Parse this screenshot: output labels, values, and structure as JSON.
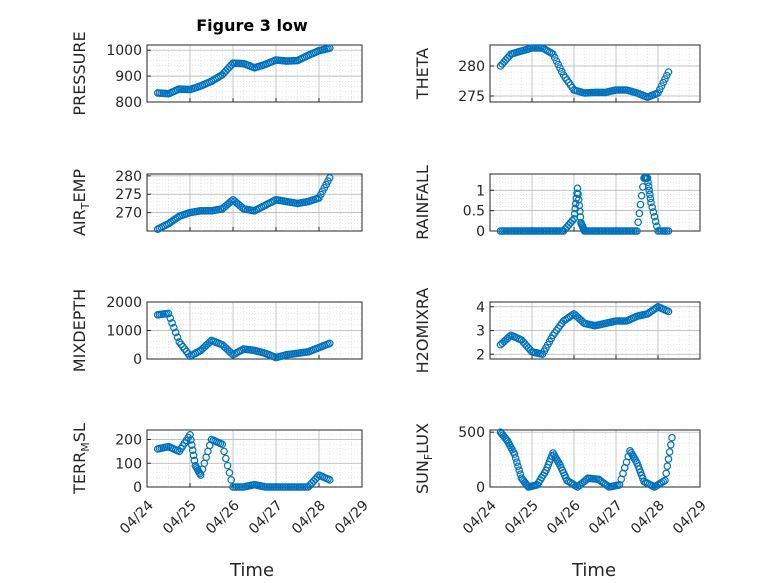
{
  "title": "Figure 3 low",
  "colors": {
    "marker": "#0072BD",
    "axis": "#262626",
    "grid": "#b0b0b0",
    "minor_grid": "#d8d8d8"
  },
  "chart_data": [
    {
      "type": "scatter",
      "ylabel_parts": [
        "PRESSURE"
      ],
      "ylim": [
        800,
        1020
      ],
      "yticks": [
        800,
        900,
        1000
      ],
      "xlim": [
        "04/24",
        "04/29"
      ],
      "grid": true,
      "minor_grid": true,
      "x": [
        "04/24 06:00",
        "04/24 12:00",
        "04/24 18:00",
        "04/25 00:00",
        "04/25 06:00",
        "04/25 12:00",
        "04/25 18:00",
        "04/26 00:00",
        "04/26 06:00",
        "04/26 12:00",
        "04/26 18:00",
        "04/27 00:00",
        "04/27 06:00",
        "04/27 12:00",
        "04/27 18:00",
        "04/28 00:00",
        "04/28 06:00"
      ],
      "y": [
        835,
        832,
        850,
        848,
        862,
        880,
        905,
        950,
        948,
        932,
        945,
        962,
        958,
        960,
        980,
        998,
        1008
      ]
    },
    {
      "type": "scatter",
      "ylabel_parts": [
        "THETA"
      ],
      "ylim": [
        274,
        283.5
      ],
      "yticks": [
        275,
        280
      ],
      "xlim": [
        "04/24",
        "04/29"
      ],
      "grid": true,
      "minor_grid": true,
      "x": [
        "04/24 06:00",
        "04/24 12:00",
        "04/24 18:00",
        "04/25 00:00",
        "04/25 06:00",
        "04/25 12:00",
        "04/25 18:00",
        "04/26 00:00",
        "04/26 06:00",
        "04/26 12:00",
        "04/26 18:00",
        "04/27 00:00",
        "04/27 06:00",
        "04/27 12:00",
        "04/27 18:00",
        "04/28 00:00",
        "04/28 06:00"
      ],
      "y": [
        280,
        282,
        282.5,
        283,
        283,
        282,
        278.5,
        276,
        275.5,
        275.6,
        275.6,
        276,
        276,
        275.5,
        274.8,
        275.5,
        279
      ]
    },
    {
      "type": "scatter",
      "ylabel_parts": [
        "AIR",
        "T",
        "EMP"
      ],
      "ylim": [
        265,
        280.5
      ],
      "yticks": [
        270,
        275,
        280
      ],
      "xlim": [
        "04/24",
        "04/29"
      ],
      "grid": true,
      "minor_grid": true,
      "x": [
        "04/24 06:00",
        "04/24 12:00",
        "04/24 18:00",
        "04/25 00:00",
        "04/25 06:00",
        "04/25 12:00",
        "04/25 18:00",
        "04/26 00:00",
        "04/26 06:00",
        "04/26 12:00",
        "04/26 18:00",
        "04/27 00:00",
        "04/27 06:00",
        "04/27 12:00",
        "04/27 18:00",
        "04/28 00:00",
        "04/28 06:00"
      ],
      "y": [
        265.5,
        267,
        269,
        270,
        270.5,
        270.5,
        271,
        273.5,
        271,
        270.5,
        272,
        273.5,
        273,
        272.5,
        273,
        274,
        279.5
      ]
    },
    {
      "type": "scatter",
      "ylabel_parts": [
        "RAINFALL"
      ],
      "ylim": [
        0,
        1.4
      ],
      "yticks": [
        0,
        0.5,
        1
      ],
      "xlim": [
        "04/24",
        "04/29"
      ],
      "grid": true,
      "minor_grid": true,
      "x": [
        "04/24 06:00",
        "04/24 12:00",
        "04/24 18:00",
        "04/25 00:00",
        "04/25 06:00",
        "04/25 12:00",
        "04/25 18:00",
        "04/26 00:00",
        "04/26 02:00",
        "04/26 04:00",
        "04/26 06:00",
        "04/26 12:00",
        "04/26 18:00",
        "04/27 00:00",
        "04/27 06:00",
        "04/27 12:00",
        "04/27 16:00",
        "04/27 18:00",
        "04/27 20:00",
        "04/28 00:00",
        "04/28 06:00"
      ],
      "y": [
        0,
        0,
        0,
        0,
        0,
        0,
        0,
        0.3,
        1.05,
        0.2,
        0,
        0,
        0,
        0,
        0,
        0,
        1.3,
        1.3,
        0.7,
        0,
        0
      ]
    },
    {
      "type": "scatter",
      "ylabel_parts": [
        "MIXDEPTH"
      ],
      "ylim": [
        0,
        2000
      ],
      "yticks": [
        0,
        1000,
        2000
      ],
      "xlim": [
        "04/24",
        "04/29"
      ],
      "grid": true,
      "minor_grid": true,
      "x": [
        "04/24 06:00",
        "04/24 12:00",
        "04/24 18:00",
        "04/25 00:00",
        "04/25 06:00",
        "04/25 12:00",
        "04/25 18:00",
        "04/26 00:00",
        "04/26 06:00",
        "04/26 12:00",
        "04/26 18:00",
        "04/27 00:00",
        "04/27 06:00",
        "04/27 12:00",
        "04/27 18:00",
        "04/28 00:00",
        "04/28 06:00"
      ],
      "y": [
        1550,
        1600,
        600,
        100,
        300,
        650,
        500,
        150,
        350,
        300,
        200,
        50,
        150,
        200,
        250,
        400,
        550
      ]
    },
    {
      "type": "scatter",
      "ylabel_parts": [
        "H2OMIXRA"
      ],
      "ylim": [
        1.8,
        4.2
      ],
      "yticks": [
        2,
        3,
        4
      ],
      "xlim": [
        "04/24",
        "04/29"
      ],
      "grid": true,
      "minor_grid": true,
      "x": [
        "04/24 06:00",
        "04/24 12:00",
        "04/24 18:00",
        "04/25 00:00",
        "04/25 06:00",
        "04/25 12:00",
        "04/25 18:00",
        "04/26 00:00",
        "04/26 06:00",
        "04/26 12:00",
        "04/26 18:00",
        "04/27 00:00",
        "04/27 06:00",
        "04/27 12:00",
        "04/27 18:00",
        "04/28 00:00",
        "04/28 06:00"
      ],
      "y": [
        2.4,
        2.8,
        2.6,
        2.1,
        2.0,
        2.8,
        3.4,
        3.7,
        3.3,
        3.2,
        3.3,
        3.4,
        3.4,
        3.6,
        3.7,
        4.0,
        3.8
      ]
    },
    {
      "type": "scatter",
      "ylabel_parts": [
        "TERR",
        "M",
        "SL"
      ],
      "ylim": [
        0,
        240
      ],
      "yticks": [
        0,
        100,
        200
      ],
      "xlim": [
        "04/24",
        "04/29"
      ],
      "grid": true,
      "minor_grid": true,
      "x": [
        "04/24 06:00",
        "04/24 12:00",
        "04/24 18:00",
        "04/25 00:00",
        "04/25 03:00",
        "04/25 06:00",
        "04/25 12:00",
        "04/25 18:00",
        "04/26 00:00",
        "04/26 06:00",
        "04/26 12:00",
        "04/26 18:00",
        "04/27 00:00",
        "04/27 06:00",
        "04/27 12:00",
        "04/27 18:00",
        "04/28 00:00",
        "04/28 06:00"
      ],
      "y": [
        160,
        170,
        150,
        220,
        90,
        50,
        200,
        180,
        0,
        0,
        10,
        0,
        0,
        0,
        0,
        0,
        50,
        30
      ]
    },
    {
      "type": "scatter",
      "ylabel_parts": [
        "SUN",
        "F",
        "LUX"
      ],
      "ylim": [
        0,
        520
      ],
      "yticks": [
        0,
        500
      ],
      "xlim": [
        "04/24",
        "04/29"
      ],
      "grid": true,
      "minor_grid": true,
      "x": [
        "04/24 06:00",
        "04/24 10:00",
        "04/24 14:00",
        "04/24 18:00",
        "04/24 22:00",
        "04/25 03:00",
        "04/25 08:00",
        "04/25 12:00",
        "04/25 16:00",
        "04/25 20:00",
        "04/26 02:00",
        "04/26 08:00",
        "04/26 14:00",
        "04/26 20:00",
        "04/27 02:00",
        "04/27 08:00",
        "04/27 12:00",
        "04/27 16:00",
        "04/27 22:00",
        "04/28 04:00",
        "04/28 08:00"
      ],
      "y": [
        500,
        420,
        300,
        80,
        0,
        20,
        150,
        310,
        200,
        60,
        0,
        80,
        70,
        0,
        20,
        330,
        220,
        50,
        0,
        60,
        450
      ]
    }
  ],
  "xticks": [
    "04/24",
    "04/25",
    "04/26",
    "04/27",
    "04/28",
    "04/29"
  ],
  "xlabel": "Time"
}
